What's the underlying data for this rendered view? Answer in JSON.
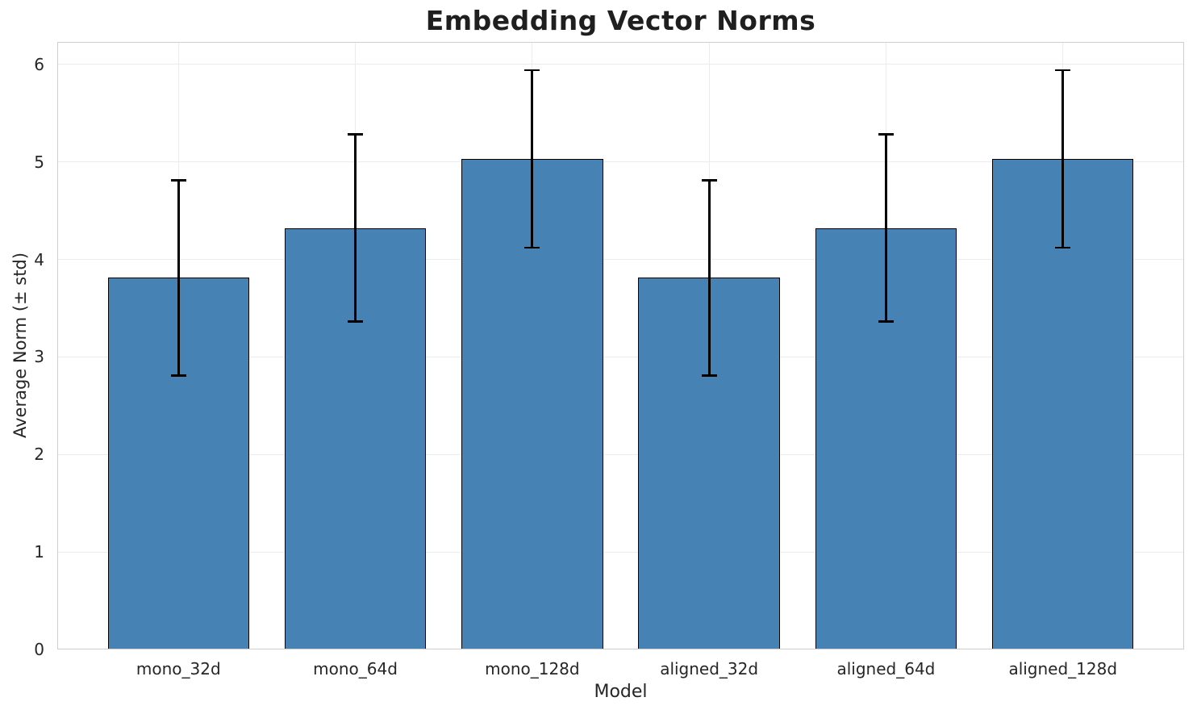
{
  "chart_data": {
    "type": "bar",
    "title": "Embedding Vector Norms",
    "xlabel": "Model",
    "ylabel": "Average Norm (± std)",
    "categories": [
      "mono_32d",
      "mono_64d",
      "mono_128d",
      "aligned_32d",
      "aligned_64d",
      "aligned_128d"
    ],
    "values": [
      3.81,
      4.32,
      5.03,
      3.81,
      4.32,
      5.03
    ],
    "errors": [
      1.0,
      0.96,
      0.91,
      1.0,
      0.96,
      0.91
    ],
    "error_type": "± std",
    "yticks": [
      0,
      1,
      2,
      3,
      4,
      5,
      6
    ],
    "ylim": [
      0,
      6.23
    ],
    "grid": true,
    "legend_position": "none",
    "colors": {
      "bar_fill": "#4682B4",
      "bar_edge": "#000000",
      "error_bar": "#000000",
      "grid_line": "#ececec",
      "spine": "#cfcfcf",
      "title_text": "#1f1f1f",
      "label_text": "#262626",
      "tick_text": "#262626",
      "background": "#ffffff"
    }
  }
}
